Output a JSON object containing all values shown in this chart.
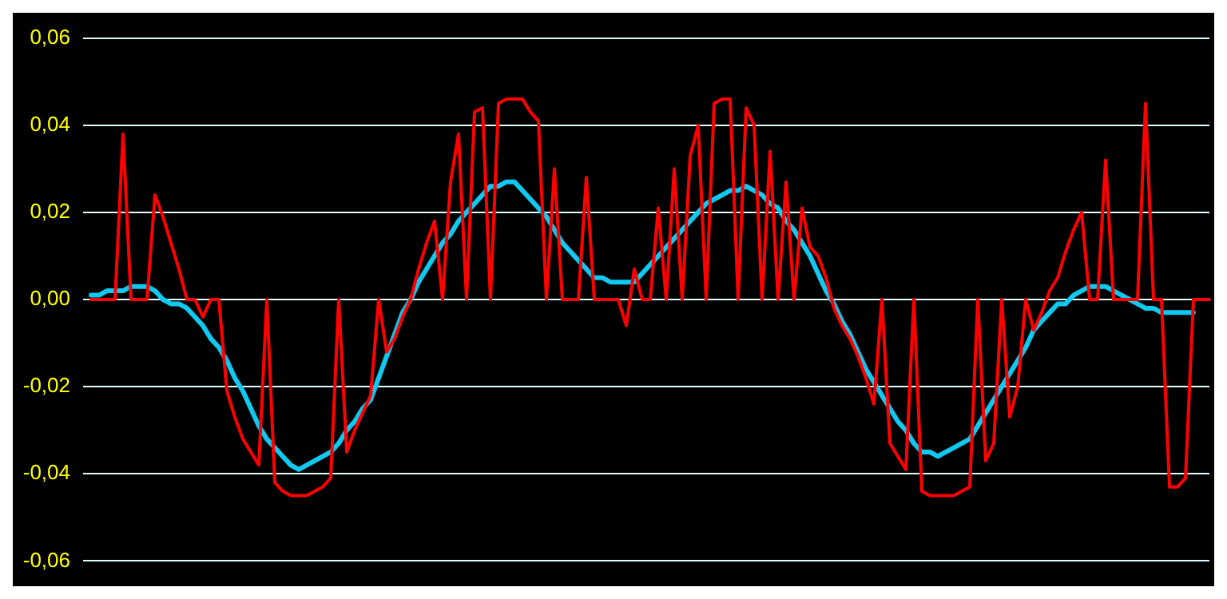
{
  "chart_data": {
    "type": "line",
    "ylim": [
      -0.06,
      0.06
    ],
    "categories": [
      null,
      null,
      null,
      null,
      null,
      null,
      null,
      null,
      null,
      null,
      null,
      null,
      null,
      null,
      null,
      null,
      null,
      null,
      null,
      null,
      null,
      null,
      null,
      null,
      null,
      null,
      null,
      null,
      null,
      null,
      null,
      null,
      null,
      null,
      null,
      null,
      null,
      null,
      null,
      null,
      null,
      null,
      null,
      null,
      null,
      null,
      null,
      null,
      null,
      null,
      null,
      null,
      null,
      null,
      null,
      null,
      null,
      null,
      null,
      null,
      null,
      null,
      null,
      null,
      null,
      null,
      null,
      null,
      null,
      null,
      null,
      null,
      null,
      null,
      null,
      null,
      null,
      null,
      null,
      null,
      null,
      null,
      null,
      null,
      null,
      null,
      null,
      null,
      null,
      null,
      null,
      null,
      null,
      null,
      null,
      null,
      null,
      null,
      null,
      null,
      null,
      null,
      null,
      null,
      null,
      null,
      null,
      null,
      null,
      null,
      null,
      null,
      null,
      null,
      null,
      null,
      null,
      null,
      null,
      null,
      null,
      null,
      null,
      null,
      null,
      null,
      null,
      null,
      null,
      null,
      null,
      null,
      null,
      null,
      null,
      null,
      null,
      null,
      null,
      null,
      null
    ],
    "yticks": [
      {
        "value": 0.06,
        "label": "0,06"
      },
      {
        "value": 0.04,
        "label": "0,04"
      },
      {
        "value": 0.02,
        "label": "0,02"
      },
      {
        "value": 0,
        "label": "0,00"
      },
      {
        "value": -0.02,
        "label": "-0,02"
      },
      {
        "value": -0.04,
        "label": "-0,04"
      },
      {
        "value": -0.06,
        "label": "-0,06"
      }
    ],
    "tick_labels": "y",
    "grid": "y",
    "legend": false,
    "marker": "none",
    "line_style": "solid",
    "series": [
      {
        "color": "#ff0000",
        "values": [
          0,
          0,
          0,
          0,
          0.038,
          0,
          0,
          0,
          0.024,
          0.019,
          0.013,
          0.007,
          0,
          0,
          -0.004,
          0,
          0,
          -0.021,
          -0.027,
          -0.032,
          -0.035,
          -0.038,
          0,
          -0.042,
          -0.044,
          -0.045,
          -0.045,
          -0.045,
          -0.044,
          -0.043,
          -0.041,
          0,
          -0.035,
          -0.03,
          -0.026,
          -0.022,
          0,
          -0.012,
          -0.009,
          -0.004,
          0,
          0.007,
          0.013,
          0.018,
          0,
          0.027,
          0.038,
          0,
          0.043,
          0.044,
          0,
          0.045,
          0.046,
          0.046,
          0.046,
          0.043,
          0.041,
          0,
          0.03,
          0,
          0,
          0,
          0.028,
          0,
          0,
          0,
          0,
          -0.006,
          0.007,
          0,
          0,
          0.021,
          0,
          0.03,
          0,
          0.033,
          0.04,
          0,
          0.045,
          0.046,
          0.046,
          0,
          0.044,
          0.04,
          0,
          0.034,
          0,
          0.027,
          0,
          0.021,
          0.012,
          0.01,
          0.005,
          -0.002,
          -0.006,
          -0.009,
          -0.013,
          -0.018,
          -0.024,
          0,
          -0.033,
          -0.036,
          -0.039,
          0,
          -0.044,
          -0.045,
          -0.045,
          -0.045,
          -0.045,
          -0.044,
          -0.043,
          0,
          -0.037,
          -0.033,
          0,
          -0.027,
          -0.02,
          0,
          -0.007,
          -0.003,
          0.002,
          0.005,
          0.011,
          0.016,
          0.02,
          0,
          0,
          0.032,
          0,
          0,
          0,
          0,
          0.045,
          0,
          0,
          -0.043,
          -0.043,
          -0.041,
          0,
          0,
          0
        ]
      },
      {
        "color": "#10c8f0",
        "values": [
          0.001,
          0.001,
          0.002,
          0.002,
          0.002,
          0.003,
          0.003,
          0.003,
          0.002,
          0,
          -0.001,
          -0.001,
          -0.002,
          -0.004,
          -0.006,
          -0.009,
          -0.011,
          -0.014,
          -0.018,
          -0.021,
          -0.025,
          -0.029,
          -0.032,
          -0.034,
          -0.036,
          -0.038,
          -0.039,
          -0.038,
          -0.037,
          -0.036,
          -0.035,
          -0.033,
          -0.03,
          -0.028,
          -0.025,
          -0.023,
          -0.018,
          -0.013,
          -0.008,
          -0.003,
          0,
          0.004,
          0.007,
          0.01,
          0.013,
          0.015,
          0.018,
          0.02,
          0.022,
          0.024,
          0.026,
          0.026,
          0.027,
          0.027,
          0.025,
          0.023,
          0.021,
          0.019,
          0.016,
          0.013,
          0.011,
          0.009,
          0.007,
          0.005,
          0.005,
          0.004,
          0.004,
          0.004,
          0.004,
          0.006,
          0.008,
          0.01,
          0.012,
          0.014,
          0.016,
          0.018,
          0.02,
          0.022,
          0.023,
          0.024,
          0.025,
          0.025,
          0.026,
          0.025,
          0.024,
          0.022,
          0.021,
          0.018,
          0.016,
          0.013,
          0.01,
          0.006,
          0.002,
          -0.001,
          -0.005,
          -0.008,
          -0.012,
          -0.016,
          -0.019,
          -0.022,
          -0.025,
          -0.028,
          -0.03,
          -0.033,
          -0.035,
          -0.035,
          -0.036,
          -0.035,
          -0.034,
          -0.033,
          -0.032,
          -0.029,
          -0.026,
          -0.023,
          -0.02,
          -0.017,
          -0.014,
          -0.011,
          -0.007,
          -0.005,
          -0.003,
          -0.001,
          -0.001,
          0.001,
          0.002,
          0.003,
          0.003,
          0.003,
          0.002,
          0.001,
          0,
          -0.001,
          -0.002,
          -0.002,
          -0.003,
          -0.003,
          -0.003,
          -0.003,
          -0.003,
          null,
          null
        ]
      }
    ]
  }
}
